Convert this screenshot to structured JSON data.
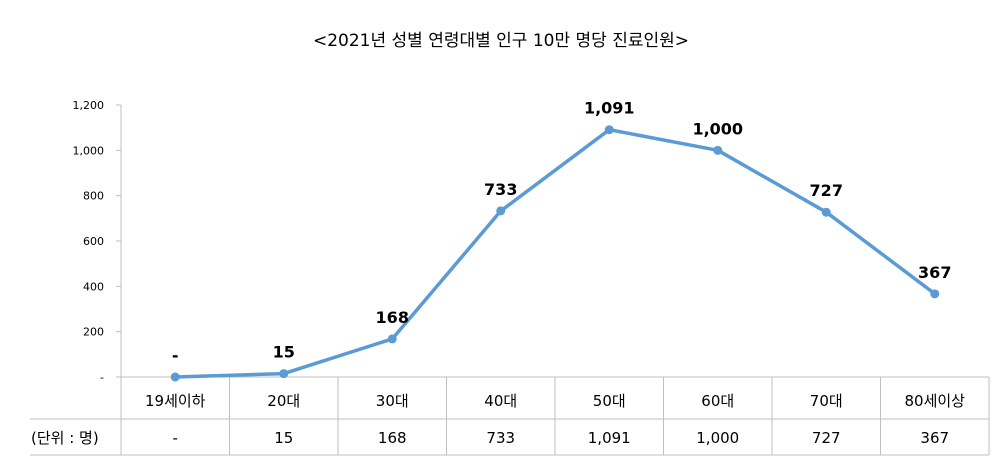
{
  "chart_data": {
    "type": "line",
    "title": "<2021년 성별 연령대별 인구 10만 명당 진료인원>",
    "categories": [
      "19세이하",
      "20대",
      "30대",
      "40대",
      "50대",
      "60대",
      "70대",
      "80세이상"
    ],
    "series": [
      {
        "values": [
          0,
          15,
          168,
          733,
          1091,
          1000,
          727,
          367
        ],
        "data_labels": [
          "-",
          "15",
          "168",
          "733",
          "1,091",
          "1,000",
          "727",
          "367"
        ]
      }
    ],
    "ylim": [
      0,
      1200
    ],
    "yticks": [
      0,
      200,
      400,
      600,
      800,
      1000,
      1200
    ],
    "ytick_labels": [
      "-",
      "200",
      "400",
      "600",
      "800",
      "1,000",
      "1,200"
    ],
    "grid": false,
    "line_color": "#5b9bd5",
    "data_table": {
      "row_label": "(단위 : 명)",
      "cells": [
        "-",
        "15",
        "168",
        "733",
        "1,091",
        "1,000",
        "727",
        "367"
      ]
    }
  }
}
